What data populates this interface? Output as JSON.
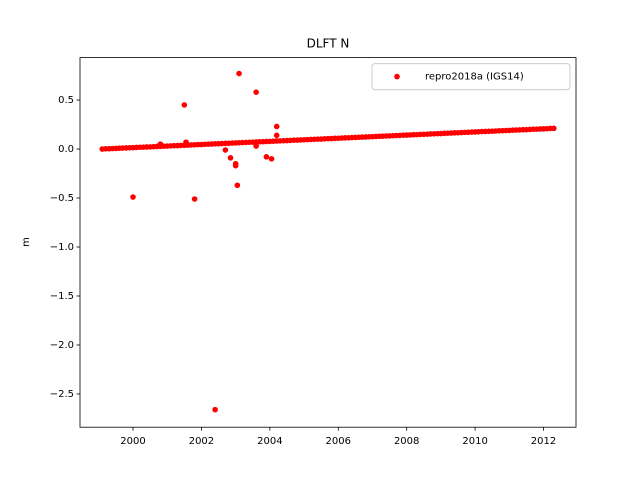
{
  "chart_data": {
    "type": "scatter",
    "title": "DLFT N",
    "y_label": "m",
    "xlim": [
      1998.45,
      2012.95
    ],
    "ylim": [
      -2.839,
      0.933
    ],
    "xticks": [
      2000,
      2002,
      2004,
      2006,
      2008,
      2010,
      2012
    ],
    "yticks": [
      {
        "value": 0.5,
        "label": "0.5"
      },
      {
        "value": 0,
        "label": "0.0"
      },
      {
        "value": -0.5,
        "label": "−0.5"
      },
      {
        "value": -1,
        "label": "−1.0"
      },
      {
        "value": -1.5,
        "label": "−1.5"
      },
      {
        "value": -2,
        "label": "−2.0"
      },
      {
        "value": -2.5,
        "label": "−2.5"
      }
    ],
    "legend": "upper right",
    "grid": false,
    "series": [
      {
        "name": "repro2018a (IGS14)",
        "color": "#ff0000",
        "x": [
          1999.1,
          1999.2,
          1999.3,
          1999.4,
          1999.5,
          1999.6,
          1999.7,
          1999.8,
          1999.9,
          2000.0,
          2000.1,
          2000.2,
          2000.3,
          2000.4,
          2000.5,
          2000.6,
          2000.7,
          2000.8,
          2000.9,
          2001.0,
          2001.1,
          2001.2,
          2001.3,
          2001.4,
          2001.5,
          2001.6,
          2001.7,
          2001.8,
          2001.9,
          2002.0,
          2002.1,
          2002.2,
          2002.3,
          2002.4,
          2002.5,
          2002.6,
          2002.7,
          2002.8,
          2002.9,
          2003.0,
          2003.1,
          2003.2,
          2003.3,
          2003.4,
          2003.5,
          2003.6,
          2003.7,
          2003.8,
          2003.9,
          2004.0,
          2004.1,
          2004.2,
          2004.3,
          2004.4,
          2004.5,
          2004.6,
          2004.7,
          2004.8,
          2004.9,
          2005.0,
          2005.1,
          2005.2,
          2005.3,
          2005.4,
          2005.5,
          2005.6,
          2005.7,
          2005.8,
          2005.9,
          2006.0,
          2006.1,
          2006.2,
          2006.3,
          2006.4,
          2006.5,
          2006.6,
          2006.7,
          2006.8,
          2006.9,
          2007.0,
          2007.1,
          2007.2,
          2007.3,
          2007.4,
          2007.5,
          2007.6,
          2007.7,
          2007.8,
          2007.9,
          2008.0,
          2008.1,
          2008.2,
          2008.3,
          2008.4,
          2008.5,
          2008.6,
          2008.7,
          2008.8,
          2008.9,
          2009.0,
          2009.1,
          2009.2,
          2009.3,
          2009.4,
          2009.5,
          2009.6,
          2009.7,
          2009.8,
          2009.9,
          2010.0,
          2010.1,
          2010.2,
          2010.3,
          2010.4,
          2010.5,
          2010.6,
          2010.7,
          2010.8,
          2010.9,
          2011.0,
          2011.1,
          2011.2,
          2011.3,
          2011.4,
          2011.5,
          2011.6,
          2011.7,
          2011.8,
          2011.9,
          2012.0,
          2012.1,
          2012.2,
          2012.3,
          2000.0,
          2001.5,
          2001.8,
          2002.4,
          2003.1,
          2003.6,
          2003.05,
          2003.0,
          2003.0,
          2002.85,
          2002.7,
          2003.9,
          2004.05,
          2004.2,
          2004.2,
          2003.6,
          2001.55,
          2000.8
        ],
        "y": [
          0,
          0.002,
          0.003,
          0.005,
          0.006,
          0.008,
          0.01,
          0.011,
          0.013,
          0.014,
          0.016,
          0.018,
          0.019,
          0.021,
          0.022,
          0.024,
          0.026,
          0.027,
          0.029,
          0.03,
          0.032,
          0.034,
          0.035,
          0.037,
          0.038,
          0.04,
          0.042,
          0.043,
          0.045,
          0.046,
          0.048,
          0.05,
          0.051,
          0.053,
          0.054,
          0.056,
          0.058,
          0.059,
          0.061,
          0.062,
          0.064,
          0.066,
          0.067,
          0.069,
          0.07,
          0.072,
          0.074,
          0.075,
          0.077,
          0.078,
          0.08,
          0.082,
          0.083,
          0.085,
          0.086,
          0.088,
          0.09,
          0.091,
          0.093,
          0.094,
          0.096,
          0.098,
          0.099,
          0.101,
          0.102,
          0.104,
          0.106,
          0.107,
          0.109,
          0.11,
          0.112,
          0.114,
          0.115,
          0.117,
          0.118,
          0.12,
          0.122,
          0.123,
          0.125,
          0.126,
          0.128,
          0.13,
          0.131,
          0.133,
          0.134,
          0.136,
          0.138,
          0.139,
          0.141,
          0.142,
          0.144,
          0.146,
          0.147,
          0.149,
          0.15,
          0.152,
          0.154,
          0.155,
          0.157,
          0.158,
          0.16,
          0.162,
          0.163,
          0.165,
          0.166,
          0.168,
          0.17,
          0.171,
          0.173,
          0.174,
          0.176,
          0.178,
          0.179,
          0.181,
          0.182,
          0.184,
          0.186,
          0.187,
          0.189,
          0.19,
          0.192,
          0.194,
          0.195,
          0.197,
          0.198,
          0.2,
          0.202,
          0.203,
          0.205,
          0.206,
          0.208,
          0.21,
          0.211,
          -0.49,
          0.45,
          -0.51,
          -2.66,
          0.77,
          0.58,
          -0.37,
          -0.15,
          -0.17,
          -0.09,
          -0.01,
          -0.08,
          -0.1,
          0.23,
          0.14,
          0.03,
          0.07,
          0.05
        ]
      }
    ]
  }
}
